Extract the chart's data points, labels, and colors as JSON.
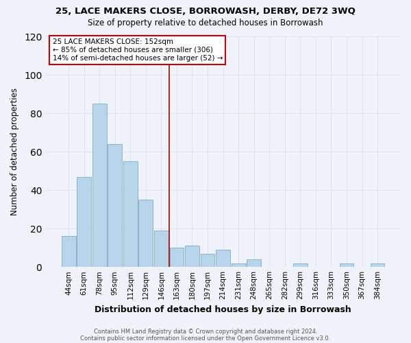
{
  "title1": "25, LACE MAKERS CLOSE, BORROWASH, DERBY, DE72 3WQ",
  "title2": "Size of property relative to detached houses in Borrowash",
  "xlabel": "Distribution of detached houses by size in Borrowash",
  "ylabel": "Number of detached properties",
  "bar_labels": [
    "44sqm",
    "61sqm",
    "78sqm",
    "95sqm",
    "112sqm",
    "129sqm",
    "146sqm",
    "163sqm",
    "180sqm",
    "197sqm",
    "214sqm",
    "231sqm",
    "248sqm",
    "265sqm",
    "282sqm",
    "299sqm",
    "316sqm",
    "333sqm",
    "350sqm",
    "367sqm",
    "384sqm"
  ],
  "bar_values": [
    16,
    47,
    85,
    64,
    55,
    35,
    19,
    10,
    11,
    7,
    9,
    2,
    4,
    0,
    0,
    2,
    0,
    0,
    2,
    0,
    2
  ],
  "bar_color": "#b8d4e8",
  "bar_edge_color": "#8ab4d0",
  "vline_index": 7,
  "vline_color": "#aa0000",
  "annotation_lines": [
    "25 LACE MAKERS CLOSE: 152sqm",
    "← 85% of detached houses are smaller (306)",
    "14% of semi-detached houses are larger (52) →"
  ],
  "annotation_box_color": "#ffffff",
  "annotation_box_edge_color": "#cc0000",
  "ylim": [
    0,
    120
  ],
  "yticks": [
    0,
    20,
    40,
    60,
    80,
    100,
    120
  ],
  "footer1": "Contains HM Land Registry data © Crown copyright and database right 2024.",
  "footer2": "Contains public sector information licensed under the Open Government Licence v3.0.",
  "bg_color": "#f0f4fa",
  "grid_color": "#d8e4f0"
}
